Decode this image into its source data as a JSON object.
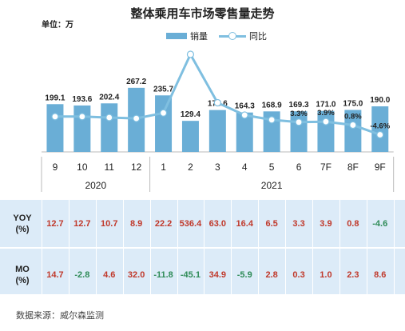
{
  "title": "整体乘用车市场零售量走势",
  "unit_label": "单位：万",
  "legend": {
    "bar_label": "销量",
    "line_label": "同比"
  },
  "colors": {
    "bar": "#6aaed6",
    "line": "#7fbfe0",
    "positive": "#c0392b",
    "negative": "#2e8b57"
  },
  "chart_data": {
    "type": "bar",
    "categories": [
      "9",
      "10",
      "11",
      "12",
      "1",
      "2",
      "3",
      "4",
      "5",
      "6",
      "7F",
      "8F",
      "9F"
    ],
    "year_groups": [
      {
        "label": "2020",
        "span": 4
      },
      {
        "label": "2021",
        "span": 9
      }
    ],
    "series": [
      {
        "name": "销量",
        "type": "bar",
        "values": [
          199.1,
          193.6,
          202.4,
          267.2,
          235.7,
          129.4,
          174.6,
          164.3,
          168.9,
          169.3,
          171.0,
          175.0,
          190.0
        ]
      },
      {
        "name": "同比",
        "type": "line",
        "unit": "%",
        "values": [
          12.7,
          12.7,
          10.7,
          8.9,
          22.2,
          536.4,
          63.0,
          16.4,
          6.5,
          3.3,
          3.9,
          0.8,
          -4.6
        ]
      }
    ],
    "bar_labels": [
      "199.1",
      "193.6",
      "202.4",
      "267.2",
      "235.7",
      "129.4",
      "174.6",
      "164.3",
      "168.9",
      "169.3",
      "171.0",
      "175.0",
      "190.0"
    ],
    "line_labels": [
      "",
      "",
      "",
      "",
      "",
      "",
      "",
      "",
      "",
      "3.3%",
      "3.9%",
      "0.8%",
      "-4.6%"
    ],
    "ylim_bar": [
      0,
      290
    ]
  },
  "table": {
    "rows": [
      {
        "label": "YOY\n(%)",
        "values": [
          "12.7",
          "12.7",
          "10.7",
          "8.9",
          "22.2",
          "536.4",
          "63.0",
          "16.4",
          "6.5",
          "3.3",
          "3.9",
          "0.8",
          "-4.6"
        ]
      },
      {
        "label": "MO\n(%)",
        "values": [
          "14.7",
          "-2.8",
          "4.6",
          "32.0",
          "-11.8",
          "-45.1",
          "34.9",
          "-5.9",
          "2.8",
          "0.3",
          "1.0",
          "2.3",
          "8.6"
        ]
      }
    ]
  },
  "source": "数据来源：威尔森监测"
}
